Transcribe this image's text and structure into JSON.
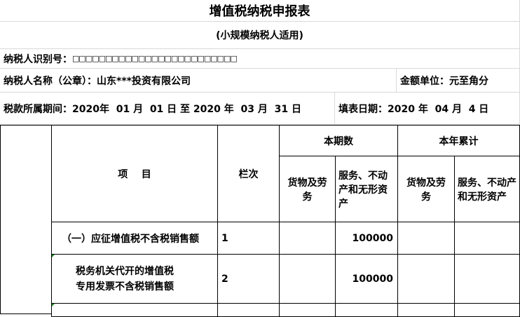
{
  "title": "增值税纳税申报表",
  "subtitle": "(小规模纳税人适用)",
  "taxpayer_id_label": "纳税人识别号：",
  "taxpayer_id_value": "□□□□□□□□□□□□□□□□□□□□□□□□□",
  "taxpayer_name": "纳税人名称（公章）：山东***投资有限公司",
  "amount_unit": "金额单位：元至角分",
  "tax_period": "税款所属期间：2020年  01 月  01 日 至 2020 年  03 月  31 日",
  "fill_date": "填表日期：2020 年  04 月  4 日",
  "table": {
    "col_item": "项    目",
    "col_line": "栏次",
    "current_period": "本期数",
    "year_total": "本年累计",
    "goods": "货物及劳务",
    "services": "服务、不动产和无形资产",
    "rows": [
      {
        "item": "（一）应征增值税不含税销售额",
        "line": "1",
        "services_current": "100000"
      },
      {
        "item": "税务机关代开的增值税\n专用发票不含税销售额",
        "line": "2",
        "services_current": "100000"
      }
    ]
  }
}
